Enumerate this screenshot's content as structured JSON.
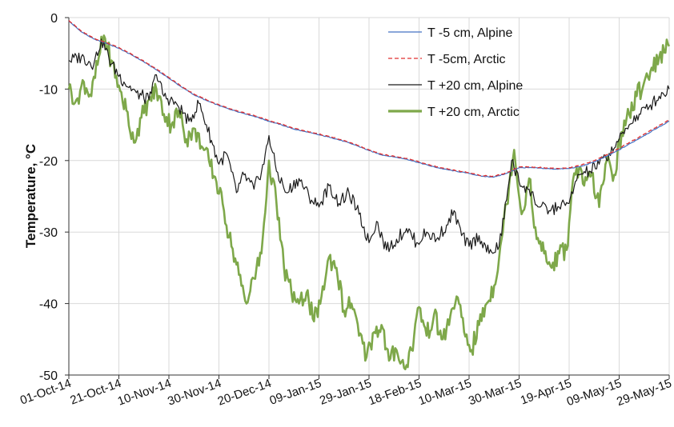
{
  "chart_data": {
    "type": "line",
    "xlabel": "",
    "ylabel": "Temperature, °C",
    "ylim": [
      -50,
      0
    ],
    "yticks": [
      0,
      -10,
      -20,
      -30,
      -40,
      -50
    ],
    "xlim": [
      "2014-10-01",
      "2015-05-29"
    ],
    "xticks": [
      "2014-10-01",
      "2014-10-21",
      "2014-11-10",
      "2014-11-30",
      "2014-12-20",
      "2015-01-09",
      "2015-01-29",
      "2015-02-18",
      "2015-03-10",
      "2015-03-30",
      "2015-04-19",
      "2015-05-09",
      "2015-05-29"
    ],
    "xtick_labels": [
      "01-Oct-14",
      "21-Oct-14",
      "10-Nov-14",
      "30-Nov-14",
      "20-Dec-14",
      "09-Jan-15",
      "29-Jan-15",
      "18-Feb-15",
      "10-Mar-15",
      "30-Mar-15",
      "19-Apr-15",
      "09-May-15",
      "29-May-15"
    ],
    "grid": true,
    "legend_position": "top-right",
    "series": [
      {
        "name": "T -5 cm, Alpine",
        "color": "#4472c4",
        "style": "solid",
        "points": [
          [
            "2014-10-01",
            -0.5
          ],
          [
            "2014-10-06",
            -2.0
          ],
          [
            "2014-10-11",
            -3.0
          ],
          [
            "2014-10-16",
            -3.6
          ],
          [
            "2014-10-21",
            -4.3
          ],
          [
            "2014-10-26",
            -5.2
          ],
          [
            "2014-10-31",
            -6.2
          ],
          [
            "2014-11-05",
            -7.3
          ],
          [
            "2014-11-10",
            -8.5
          ],
          [
            "2014-11-15",
            -9.7
          ],
          [
            "2014-11-20",
            -10.8
          ],
          [
            "2014-11-25",
            -11.6
          ],
          [
            "2014-11-30",
            -12.3
          ],
          [
            "2014-12-05",
            -12.9
          ],
          [
            "2014-12-10",
            -13.4
          ],
          [
            "2014-12-15",
            -13.9
          ],
          [
            "2014-12-20",
            -14.5
          ],
          [
            "2014-12-25",
            -15.0
          ],
          [
            "2014-12-30",
            -15.6
          ],
          [
            "2015-01-04",
            -16.0
          ],
          [
            "2015-01-09",
            -16.4
          ],
          [
            "2015-01-14",
            -16.8
          ],
          [
            "2015-01-19",
            -17.3
          ],
          [
            "2015-01-24",
            -17.9
          ],
          [
            "2015-01-29",
            -18.6
          ],
          [
            "2015-02-03",
            -19.2
          ],
          [
            "2015-02-08",
            -19.5
          ],
          [
            "2015-02-13",
            -19.8
          ],
          [
            "2015-02-18",
            -20.3
          ],
          [
            "2015-02-23",
            -20.8
          ],
          [
            "2015-02-28",
            -21.2
          ],
          [
            "2015-03-05",
            -21.5
          ],
          [
            "2015-03-10",
            -21.8
          ],
          [
            "2015-03-15",
            -22.2
          ],
          [
            "2015-03-20",
            -22.3
          ],
          [
            "2015-03-25",
            -21.8
          ],
          [
            "2015-03-30",
            -21.0
          ],
          [
            "2015-04-04",
            -21.0
          ],
          [
            "2015-04-09",
            -21.1
          ],
          [
            "2015-04-14",
            -21.2
          ],
          [
            "2015-04-19",
            -21.1
          ],
          [
            "2015-04-24",
            -20.8
          ],
          [
            "2015-04-29",
            -20.2
          ],
          [
            "2015-05-04",
            -19.4
          ],
          [
            "2015-05-09",
            -18.5
          ],
          [
            "2015-05-14",
            -17.5
          ],
          [
            "2015-05-19",
            -16.5
          ],
          [
            "2015-05-24",
            -15.5
          ],
          [
            "2015-05-29",
            -14.5
          ]
        ]
      },
      {
        "name": "T -5cm, Arctic",
        "color": "#e03030",
        "style": "dashed",
        "points": [
          [
            "2014-10-01",
            -0.4
          ],
          [
            "2014-10-06",
            -1.9
          ],
          [
            "2014-10-11",
            -2.9
          ],
          [
            "2014-10-16",
            -3.5
          ],
          [
            "2014-10-21",
            -4.2
          ],
          [
            "2014-10-26",
            -5.1
          ],
          [
            "2014-10-31",
            -6.1
          ],
          [
            "2014-11-05",
            -7.2
          ],
          [
            "2014-11-10",
            -8.4
          ],
          [
            "2014-11-15",
            -9.6
          ],
          [
            "2014-11-20",
            -10.7
          ],
          [
            "2014-11-25",
            -11.5
          ],
          [
            "2014-11-30",
            -12.2
          ],
          [
            "2014-12-05",
            -12.8
          ],
          [
            "2014-12-10",
            -13.3
          ],
          [
            "2014-12-15",
            -13.8
          ],
          [
            "2014-12-20",
            -14.4
          ],
          [
            "2014-12-25",
            -14.9
          ],
          [
            "2014-12-30",
            -15.5
          ],
          [
            "2015-01-04",
            -15.9
          ],
          [
            "2015-01-09",
            -16.3
          ],
          [
            "2015-01-14",
            -16.7
          ],
          [
            "2015-01-19",
            -17.2
          ],
          [
            "2015-01-24",
            -17.8
          ],
          [
            "2015-01-29",
            -18.5
          ],
          [
            "2015-02-03",
            -19.1
          ],
          [
            "2015-02-08",
            -19.4
          ],
          [
            "2015-02-13",
            -19.7
          ],
          [
            "2015-02-18",
            -20.2
          ],
          [
            "2015-02-23",
            -20.7
          ],
          [
            "2015-02-28",
            -21.1
          ],
          [
            "2015-03-05",
            -21.4
          ],
          [
            "2015-03-10",
            -21.7
          ],
          [
            "2015-03-15",
            -22.1
          ],
          [
            "2015-03-20",
            -22.2
          ],
          [
            "2015-03-25",
            -21.7
          ],
          [
            "2015-03-30",
            -20.9
          ],
          [
            "2015-04-04",
            -20.9
          ],
          [
            "2015-04-09",
            -21.0
          ],
          [
            "2015-04-14",
            -21.1
          ],
          [
            "2015-04-19",
            -21.0
          ],
          [
            "2015-04-24",
            -20.6
          ],
          [
            "2015-04-29",
            -20.0
          ],
          [
            "2015-05-04",
            -19.2
          ],
          [
            "2015-05-09",
            -18.3
          ],
          [
            "2015-05-14",
            -17.3
          ],
          [
            "2015-05-19",
            -16.3
          ],
          [
            "2015-05-24",
            -15.3
          ],
          [
            "2015-05-29",
            -14.3
          ]
        ]
      },
      {
        "name": "T +20 cm, Alpine",
        "color": "#1a1a1a",
        "style": "solid",
        "points": [
          [
            "2014-10-01",
            -6.0
          ],
          [
            "2014-10-06",
            -5.5
          ],
          [
            "2014-10-11",
            -6.5
          ],
          [
            "2014-10-14",
            -3.0
          ],
          [
            "2014-10-18",
            -6.5
          ],
          [
            "2014-10-23",
            -9.0
          ],
          [
            "2014-10-28",
            -10.5
          ],
          [
            "2014-11-02",
            -11.5
          ],
          [
            "2014-11-05",
            -8.0
          ],
          [
            "2014-11-08",
            -11.0
          ],
          [
            "2014-11-13",
            -12.0
          ],
          [
            "2014-11-18",
            -14.5
          ],
          [
            "2014-11-22",
            -12.0
          ],
          [
            "2014-11-25",
            -15.0
          ],
          [
            "2014-11-30",
            -20.5
          ],
          [
            "2014-12-03",
            -19.0
          ],
          [
            "2014-12-07",
            -24.5
          ],
          [
            "2014-12-10",
            -22.0
          ],
          [
            "2014-12-14",
            -24.0
          ],
          [
            "2014-12-18",
            -20.5
          ],
          [
            "2014-12-20",
            -16.5
          ],
          [
            "2014-12-23",
            -21.5
          ],
          [
            "2014-12-27",
            -24.5
          ],
          [
            "2015-01-01",
            -22.5
          ],
          [
            "2015-01-05",
            -25.0
          ],
          [
            "2015-01-09",
            -26.5
          ],
          [
            "2015-01-13",
            -23.5
          ],
          [
            "2015-01-17",
            -26.0
          ],
          [
            "2015-01-21",
            -24.5
          ],
          [
            "2015-01-25",
            -27.5
          ],
          [
            "2015-01-29",
            -31.5
          ],
          [
            "2015-02-01",
            -28.5
          ],
          [
            "2015-02-05",
            -32.5
          ],
          [
            "2015-02-09",
            -31.0
          ],
          [
            "2015-02-13",
            -29.5
          ],
          [
            "2015-02-17",
            -31.5
          ],
          [
            "2015-02-21",
            -30.0
          ],
          [
            "2015-02-25",
            -31.0
          ],
          [
            "2015-03-01",
            -29.0
          ],
          [
            "2015-03-04",
            -27.0
          ],
          [
            "2015-03-07",
            -30.5
          ],
          [
            "2015-03-10",
            -32.0
          ],
          [
            "2015-03-14",
            -30.5
          ],
          [
            "2015-03-18",
            -33.0
          ],
          [
            "2015-03-22",
            -32.0
          ],
          [
            "2015-03-25",
            -25.5
          ],
          [
            "2015-03-27",
            -20.0
          ],
          [
            "2015-03-30",
            -23.0
          ],
          [
            "2015-04-03",
            -24.0
          ],
          [
            "2015-04-07",
            -26.5
          ],
          [
            "2015-04-11",
            -27.0
          ],
          [
            "2015-04-15",
            -26.5
          ],
          [
            "2015-04-19",
            -26.0
          ],
          [
            "2015-04-23",
            -22.0
          ],
          [
            "2015-04-27",
            -21.5
          ],
          [
            "2015-05-01",
            -20.5
          ],
          [
            "2015-05-05",
            -19.0
          ],
          [
            "2015-05-09",
            -17.0
          ],
          [
            "2015-05-13",
            -15.0
          ],
          [
            "2015-05-17",
            -13.5
          ],
          [
            "2015-05-21",
            -12.5
          ],
          [
            "2015-05-25",
            -11.0
          ],
          [
            "2015-05-29",
            -10.0
          ]
        ]
      },
      {
        "name": "T +20 cm, Arctic",
        "color": "#7ea84a",
        "style": "solid-thick",
        "points": [
          [
            "2014-10-01",
            -10.0
          ],
          [
            "2014-10-04",
            -11.5
          ],
          [
            "2014-10-07",
            -9.0
          ],
          [
            "2014-10-10",
            -11.0
          ],
          [
            "2014-10-13",
            -5.5
          ],
          [
            "2014-10-15",
            -2.5
          ],
          [
            "2014-10-18",
            -6.0
          ],
          [
            "2014-10-21",
            -9.5
          ],
          [
            "2014-10-24",
            -13.0
          ],
          [
            "2014-10-27",
            -17.5
          ],
          [
            "2014-10-30",
            -14.0
          ],
          [
            "2014-11-02",
            -11.5
          ],
          [
            "2014-11-05",
            -10.0
          ],
          [
            "2014-11-08",
            -13.5
          ],
          [
            "2014-11-11",
            -15.0
          ],
          [
            "2014-11-14",
            -13.0
          ],
          [
            "2014-11-17",
            -17.0
          ],
          [
            "2014-11-20",
            -15.5
          ],
          [
            "2014-11-23",
            -18.0
          ],
          [
            "2014-11-26",
            -20.0
          ],
          [
            "2014-11-29",
            -23.0
          ],
          [
            "2014-12-02",
            -27.0
          ],
          [
            "2014-12-05",
            -32.0
          ],
          [
            "2014-12-08",
            -36.0
          ],
          [
            "2014-12-11",
            -40.0
          ],
          [
            "2014-12-14",
            -36.5
          ],
          [
            "2014-12-17",
            -33.0
          ],
          [
            "2014-12-20",
            -20.0
          ],
          [
            "2014-12-23",
            -26.0
          ],
          [
            "2014-12-26",
            -35.0
          ],
          [
            "2014-12-29",
            -38.5
          ],
          [
            "2015-01-01",
            -40.0
          ],
          [
            "2015-01-04",
            -38.5
          ],
          [
            "2015-01-07",
            -42.5
          ],
          [
            "2015-01-10",
            -39.0
          ],
          [
            "2015-01-13",
            -33.5
          ],
          [
            "2015-01-16",
            -35.0
          ],
          [
            "2015-01-19",
            -41.0
          ],
          [
            "2015-01-22",
            -40.0
          ],
          [
            "2015-01-25",
            -44.5
          ],
          [
            "2015-01-28",
            -47.5
          ],
          [
            "2015-01-31",
            -44.0
          ],
          [
            "2015-02-03",
            -43.0
          ],
          [
            "2015-02-06",
            -48.0
          ],
          [
            "2015-02-09",
            -46.5
          ],
          [
            "2015-02-12",
            -49.0
          ],
          [
            "2015-02-15",
            -46.5
          ],
          [
            "2015-02-18",
            -40.5
          ],
          [
            "2015-02-21",
            -44.5
          ],
          [
            "2015-02-24",
            -41.5
          ],
          [
            "2015-02-27",
            -45.0
          ],
          [
            "2015-03-02",
            -43.0
          ],
          [
            "2015-03-05",
            -39.0
          ],
          [
            "2015-03-08",
            -44.0
          ],
          [
            "2015-03-11",
            -46.5
          ],
          [
            "2015-03-14",
            -43.0
          ],
          [
            "2015-03-17",
            -40.0
          ],
          [
            "2015-03-20",
            -37.5
          ],
          [
            "2015-03-23",
            -31.0
          ],
          [
            "2015-03-26",
            -23.5
          ],
          [
            "2015-03-28",
            -18.5
          ],
          [
            "2015-03-31",
            -27.5
          ],
          [
            "2015-04-03",
            -22.5
          ],
          [
            "2015-04-06",
            -31.0
          ],
          [
            "2015-04-09",
            -33.0
          ],
          [
            "2015-04-12",
            -35.0
          ],
          [
            "2015-04-15",
            -33.0
          ],
          [
            "2015-04-18",
            -32.5
          ],
          [
            "2015-04-20",
            -24.5
          ],
          [
            "2015-04-22",
            -21.0
          ],
          [
            "2015-04-25",
            -23.5
          ],
          [
            "2015-04-28",
            -22.0
          ],
          [
            "2015-05-01",
            -26.5
          ],
          [
            "2015-05-04",
            -20.0
          ],
          [
            "2015-05-07",
            -22.0
          ],
          [
            "2015-05-10",
            -16.0
          ],
          [
            "2015-05-13",
            -13.5
          ],
          [
            "2015-05-16",
            -11.0
          ],
          [
            "2015-05-19",
            -9.0
          ],
          [
            "2015-05-22",
            -7.0
          ],
          [
            "2015-05-25",
            -5.5
          ],
          [
            "2015-05-29",
            -4.0
          ]
        ]
      }
    ]
  }
}
